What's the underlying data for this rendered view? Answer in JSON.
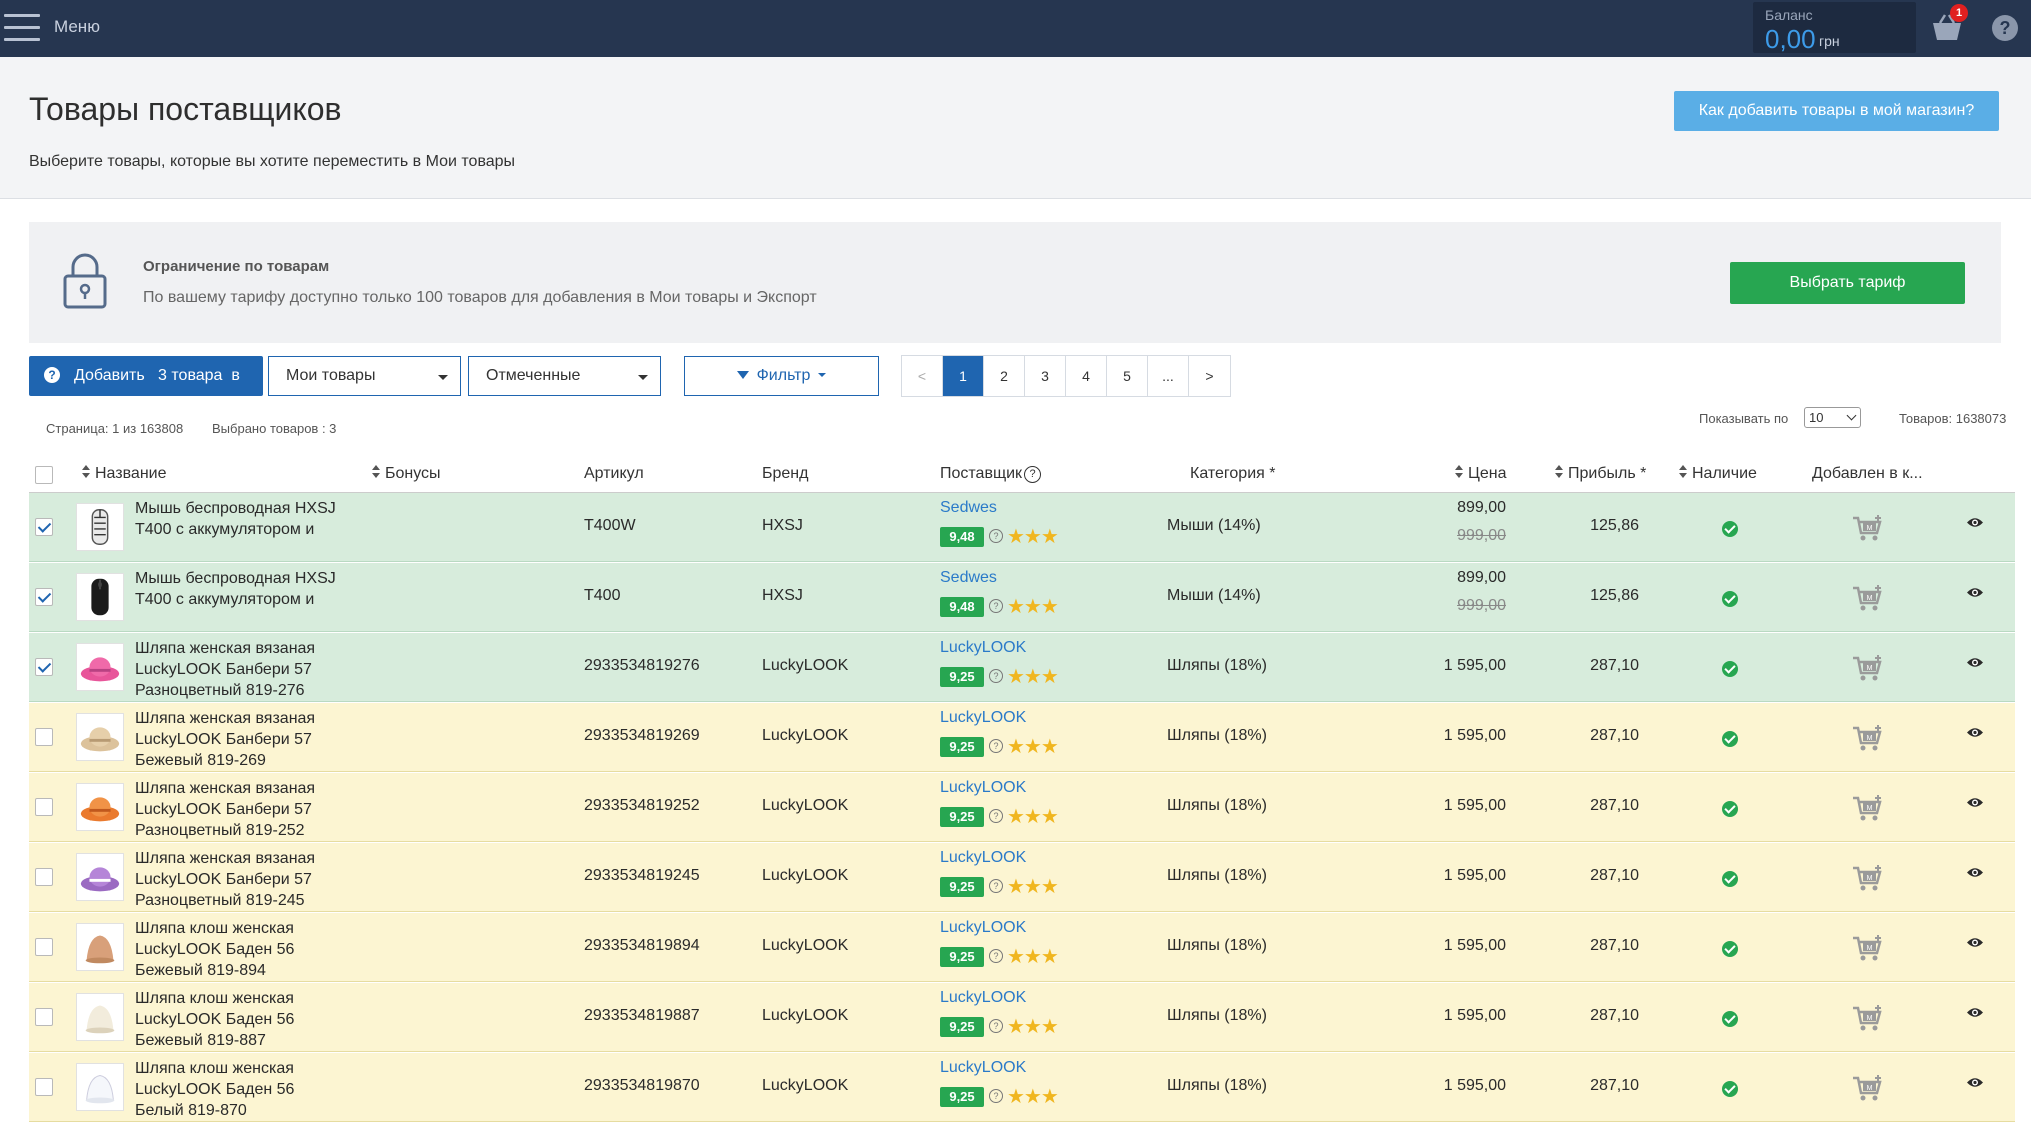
{
  "topbar": {
    "menu_label": "Меню",
    "balance_title": "Баланс",
    "balance_value": "0,00",
    "balance_currency": "грн",
    "cart_count": "1",
    "help_symbol": "?"
  },
  "header": {
    "title": "Товары поставщиков",
    "subtitle": "Выберите товары, которые вы хотите переместить в Мои товары",
    "how_button": "Как добавить товары в мой магазин?"
  },
  "limit": {
    "title": "Ограничение по товарам",
    "text": "По вашему тарифу доступно только 100 товаров для добавления в Мои товары и Экспорт",
    "tariff_button": "Выбрать тариф"
  },
  "toolbar": {
    "add_button_icon": "?",
    "add_button": "Добавить   3 товара  в",
    "dropdown_target": "Мои товары",
    "dropdown_filter": "Отмеченные",
    "filter_button": "Фильтр",
    "pager": [
      "<",
      "1",
      "2",
      "3",
      "4",
      "5",
      "...",
      ">"
    ]
  },
  "info": {
    "page": "Страница: 1 из 163808",
    "selected": "Выбрано товаров : 3",
    "show_by_label": "Показывать по",
    "show_by_value": "10",
    "total": "Товаров: 1638073"
  },
  "columns": {
    "name": "Название",
    "bonus": "Бонусы",
    "sku": "Артикул",
    "brand": "Бренд",
    "supplier": "Поставщик",
    "supplier_help": "?",
    "category": "Категория *",
    "price": "Цена",
    "profit": "Прибыль *",
    "availability": "Наличие",
    "added": "Добавлен в к..."
  },
  "colors": {
    "topbar": "#263650",
    "selected_row": "#d7ecdc",
    "unselected_row": "#fcf5d2",
    "accent": "#1f65b0",
    "green": "#27a651"
  },
  "rows": [
    {
      "checked": true,
      "name": "Мышь беспроводная HXSJ T400 с аккумулятором и",
      "sku": "T400W",
      "brand": "HXSJ",
      "supplier": "Sedwes",
      "rating": "9,48",
      "stars": "★★★",
      "category": "Мыши (14%)",
      "price": "899,00",
      "old_price": "999,00",
      "profit": "125,86",
      "thumb": "mouse-white"
    },
    {
      "checked": true,
      "name": "Мышь беспроводная HXSJ T400 с аккумулятором и",
      "sku": "T400",
      "brand": "HXSJ",
      "supplier": "Sedwes",
      "rating": "9,48",
      "stars": "★★★",
      "category": "Мыши (14%)",
      "price": "899,00",
      "old_price": "999,00",
      "profit": "125,86",
      "thumb": "mouse-black"
    },
    {
      "checked": true,
      "name": "Шляпа женская вязаная LuckyLOOK Банбери 57 Разноцветный 819-276",
      "sku": "2933534819276",
      "brand": "LuckyLOOK",
      "supplier": "LuckyLOOK",
      "rating": "9,25",
      "stars": "★★★",
      "category": "Шляпы (18%)",
      "price": "1 595,00",
      "old_price": "",
      "profit": "287,10",
      "thumb": "hat-pink"
    },
    {
      "checked": false,
      "name": "Шляпа женская вязаная LuckyLOOK Банбери 57 Бежевый 819-269",
      "sku": "2933534819269",
      "brand": "LuckyLOOK",
      "supplier": "LuckyLOOK",
      "rating": "9,25",
      "stars": "★★★",
      "category": "Шляпы (18%)",
      "price": "1 595,00",
      "old_price": "",
      "profit": "287,10",
      "thumb": "hat-beige"
    },
    {
      "checked": false,
      "name": "Шляпа женская вязаная LuckyLOOK Банбери 57 Разноцветный 819-252",
      "sku": "2933534819252",
      "brand": "LuckyLOOK",
      "supplier": "LuckyLOOK",
      "rating": "9,25",
      "stars": "★★★",
      "category": "Шляпы (18%)",
      "price": "1 595,00",
      "old_price": "",
      "profit": "287,10",
      "thumb": "hat-orange"
    },
    {
      "checked": false,
      "name": "Шляпа женская вязаная LuckyLOOK Банбери 57 Разноцветный 819-245",
      "sku": "2933534819245",
      "brand": "LuckyLOOK",
      "supplier": "LuckyLOOK",
      "rating": "9,25",
      "stars": "★★★",
      "category": "Шляпы (18%)",
      "price": "1 595,00",
      "old_price": "",
      "profit": "287,10",
      "thumb": "hat-purple"
    },
    {
      "checked": false,
      "name": "Шляпа клош женская LuckyLOOK Баден 56 Бежевый 819-894",
      "sku": "2933534819894",
      "brand": "LuckyLOOK",
      "supplier": "LuckyLOOK",
      "rating": "9,25",
      "stars": "★★★",
      "category": "Шляпы (18%)",
      "price": "1 595,00",
      "old_price": "",
      "profit": "287,10",
      "thumb": "cloche-tan"
    },
    {
      "checked": false,
      "name": "Шляпа клош женская LuckyLOOK Баден 56 Бежевый 819-887",
      "sku": "2933534819887",
      "brand": "LuckyLOOK",
      "supplier": "LuckyLOOK",
      "rating": "9,25",
      "stars": "★★★",
      "category": "Шляпы (18%)",
      "price": "1 595,00",
      "old_price": "",
      "profit": "287,10",
      "thumb": "cloche-cream"
    },
    {
      "checked": false,
      "name": "Шляпа клош женская LuckyLOOK Баден 56 Белый 819-870",
      "sku": "2933534819870",
      "brand": "LuckyLOOK",
      "supplier": "LuckyLOOK",
      "rating": "9,25",
      "stars": "★★★",
      "category": "Шляпы (18%)",
      "price": "1 595,00",
      "old_price": "",
      "profit": "287,10",
      "thumb": "cloche-white"
    }
  ]
}
